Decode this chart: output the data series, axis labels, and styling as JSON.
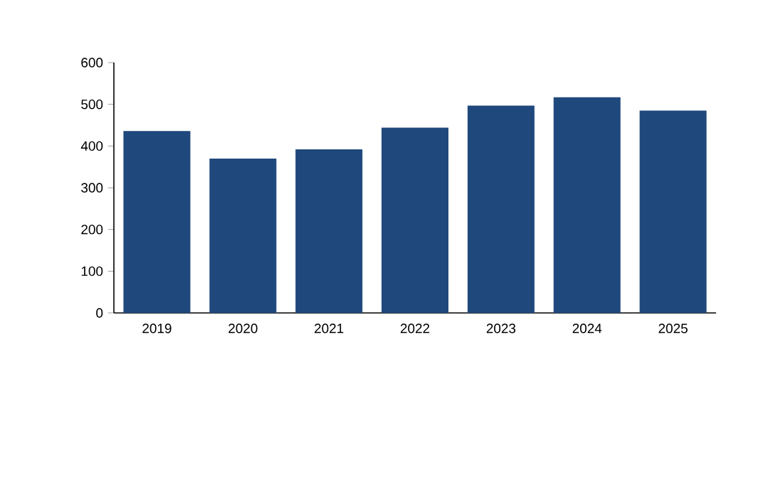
{
  "chart_data": {
    "type": "bar",
    "categories": [
      "2019",
      "2020",
      "2021",
      "2022",
      "2023",
      "2024",
      "2025"
    ],
    "values": [
      436,
      370,
      392,
      444,
      497,
      517,
      485
    ],
    "color": "#1f487c",
    "ylim": [
      0,
      600
    ],
    "yticks": [
      0,
      100,
      200,
      300,
      400,
      500,
      600
    ],
    "grid": false
  }
}
